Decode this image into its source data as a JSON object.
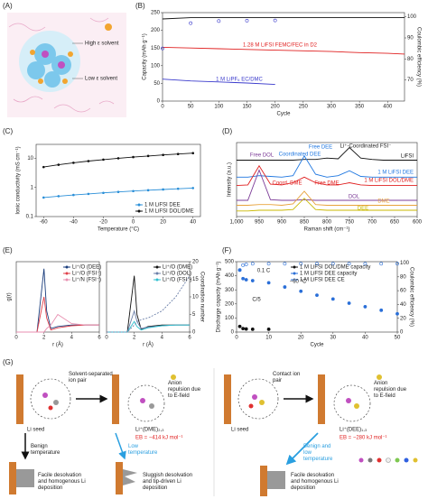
{
  "panels": [
    "(A)",
    "(B)",
    "(C)",
    "(D)",
    "(E)",
    "(F)",
    "(G)"
  ],
  "A": {
    "high": "High ε solvent",
    "low": "Low ε solvent"
  },
  "chart_data": [
    {
      "type": "line",
      "xlabel": "Cycle",
      "ylabel": "Capacity (mAh g⁻¹)",
      "y2label": "Coulombic efficiency (%)",
      "x": [
        0,
        50,
        100,
        150,
        200,
        250,
        300,
        350,
        400,
        430
      ],
      "xlim": [
        0,
        430
      ],
      "xticks": [
        0,
        50,
        100,
        150,
        200,
        250,
        300,
        350,
        400
      ],
      "ylim": [
        0,
        250
      ],
      "yticks": [
        0,
        50,
        100,
        150,
        200,
        250
      ],
      "y2lim": [
        60,
        102
      ],
      "y2ticks": [
        70,
        80,
        90,
        100
      ],
      "legend": "inline",
      "series": [
        {
          "name": "1.28 M LiFSI FEMC/FEC in D2",
          "color": "#e02020",
          "values": [
            152,
            150,
            148,
            146,
            144,
            142,
            140,
            137,
            135,
            133
          ]
        },
        {
          "name": "1 M LiPF₆ EC/DMC",
          "color": "#3a3acc",
          "values": [
            62,
            57,
            54,
            51,
            47,
            null,
            null,
            null,
            null,
            null
          ]
        },
        {
          "color": "#111111",
          "axis": "y2",
          "values": [
            99,
            99.6,
            99.6,
            99.6,
            99.6,
            99.6,
            99.6,
            99.6,
            99.6,
            99.6
          ]
        },
        {
          "color": "#3a3acc",
          "axis": "y2",
          "style": "open",
          "values": [
            85,
            97,
            98,
            98.2,
            98.3,
            null,
            null,
            null,
            null,
            null
          ]
        }
      ]
    },
    {
      "type": "line",
      "xlabel": "Temperature (°C)",
      "ylabel": "Ionic conductivity (mS cm⁻¹)",
      "x": [
        -60,
        -50,
        -40,
        -30,
        -20,
        -10,
        0,
        10,
        20,
        30,
        40
      ],
      "xlim": [
        -65,
        45
      ],
      "xticks": [
        -60,
        -40,
        -20,
        0,
        20,
        40
      ],
      "ylim": [
        0.1,
        30
      ],
      "ylog": true,
      "yticks": [
        0.1,
        1,
        10
      ],
      "legend": "lower right",
      "markers": true,
      "series": [
        {
          "name": "1 M LiFSI DEE",
          "color": "#2a8fd8",
          "values": [
            0.45,
            0.5,
            0.55,
            0.6,
            0.65,
            0.7,
            0.75,
            0.8,
            0.85,
            0.9,
            0.95
          ]
        },
        {
          "name": "1 M LiFSI DOL/DME",
          "color": "#111111",
          "values": [
            5,
            6,
            7,
            8,
            9,
            10,
            11,
            12,
            13,
            14,
            15
          ]
        }
      ]
    },
    {
      "type": "line",
      "xlabel": "Raman shift (cm⁻¹)",
      "ylabel": "Intensity (a.u.)",
      "x": [
        1000,
        975,
        950,
        925,
        900,
        875,
        850,
        825,
        800,
        775,
        750,
        725,
        700,
        675,
        650,
        625,
        600
      ],
      "xlim": [
        1000,
        600
      ],
      "xticks": [
        {
          "value": 1000,
          "label": "1,000"
        },
        950,
        900,
        850,
        800,
        750,
        700,
        650,
        600
      ],
      "ylim": [
        0,
        10.5
      ],
      "legend": "inline",
      "annotations": [
        "Free DOL",
        "Free DEE",
        "Coordinated DEE",
        "Li⁺-Coordinated FSI⁻",
        "Coord. DME",
        "Free DME"
      ],
      "series": [
        {
          "name": "LiFSI",
          "color": "#111111",
          "values": [
            8,
            8,
            8,
            8,
            8,
            8,
            8.1,
            8.1,
            8.3,
            8.2,
            9.8,
            8.3,
            8.1,
            8,
            8,
            8,
            8
          ]
        },
        {
          "name": "1 M LiFSI DEE",
          "color": "#1f77e0",
          "values": [
            5.6,
            5.6,
            5.8,
            5.7,
            5.6,
            5.8,
            8.6,
            6,
            5.6,
            5.8,
            6.5,
            5.7,
            5.6,
            5.6,
            5.6,
            5.6,
            5.6
          ]
        },
        {
          "name": "1 M LiFSI DOL/DME",
          "color": "#e02020",
          "values": [
            4.4,
            4.5,
            7.2,
            4.6,
            4.5,
            4.8,
            5.6,
            4.8,
            4.5,
            4.5,
            4.8,
            4.5,
            4.4,
            4.4,
            4.4,
            4.4,
            4.4
          ]
        },
        {
          "name": "DOL",
          "color": "#7d3c98",
          "values": [
            2.3,
            2.3,
            6.6,
            2.4,
            2.3,
            2.3,
            2.4,
            2.3,
            2.3,
            2.3,
            2.3,
            2.3,
            2.3,
            2.3,
            2.3,
            2.3,
            2.3
          ]
        },
        {
          "name": "DME",
          "color": "#e8a33c",
          "values": [
            1.6,
            1.6,
            1.7,
            1.7,
            1.6,
            1.8,
            3.6,
            1.7,
            1.6,
            1.6,
            1.6,
            1.6,
            1.6,
            1.6,
            1.6,
            1.6,
            1.6
          ]
        },
        {
          "name": "DEE",
          "color": "#c9b800",
          "values": [
            0.8,
            0.8,
            0.9,
            0.9,
            0.9,
            1,
            2.6,
            1,
            0.9,
            0.9,
            0.9,
            0.9,
            0.9,
            0.9,
            0.9,
            0.9,
            0.9
          ]
        }
      ]
    },
    {
      "type": "line",
      "xlabel": "r (Å)",
      "ylabel": "g(r)",
      "x": [
        0,
        1,
        1.5,
        2,
        2.2,
        2.5,
        3,
        4,
        5,
        6
      ],
      "xlim": [
        0,
        6
      ],
      "xticks": [
        0,
        2,
        4,
        6
      ],
      "ylim": [
        0,
        10
      ],
      "legend": "upper right",
      "series": [
        {
          "name": "Li⁺/O (DEE)",
          "color": "#1a3d7c",
          "values": [
            0,
            0,
            0,
            9,
            3,
            0.5,
            0.8,
            1,
            1,
            1
          ]
        },
        {
          "name": "Li⁺/O (FSI⁻)",
          "color": "#e0404a",
          "values": [
            0,
            0,
            0,
            5,
            2,
            0.3,
            0.6,
            0.9,
            1,
            1
          ]
        },
        {
          "name": "Li⁺/N (FSI⁻)",
          "color": "#e88fb0",
          "values": [
            0,
            0,
            0,
            0,
            0.5,
            1,
            2.5,
            1.2,
            1,
            1
          ]
        }
      ]
    },
    {
      "type": "line",
      "xlabel": "r (Å)",
      "y2label": "Coordination number",
      "x": [
        0,
        1,
        1.5,
        2,
        2.2,
        2.5,
        3,
        4,
        5,
        6
      ],
      "xlim": [
        0,
        6
      ],
      "xticks": [
        0,
        2,
        4,
        6
      ],
      "ylim": [
        0,
        10
      ],
      "y2lim": [
        0,
        20
      ],
      "y2ticks": [
        0,
        5,
        10,
        15,
        20
      ],
      "legend": "upper right",
      "series": [
        {
          "name": "Li⁺/O (DME)",
          "color": "#111111",
          "values": [
            0,
            0,
            0,
            8,
            2.5,
            0.4,
            0.8,
            1,
            1,
            1
          ]
        },
        {
          "name": "Li⁺/O (DOL)",
          "color": "#6b7fa8",
          "values": [
            0,
            0,
            0,
            3,
            1.5,
            0.5,
            0.7,
            0.9,
            1,
            1
          ]
        },
        {
          "name": "Li⁺/O (FSI⁻)",
          "color": "#2fc0d0",
          "values": [
            0,
            0,
            0,
            1.5,
            0.8,
            0.3,
            0.6,
            0.9,
            1,
            1
          ]
        },
        {
          "color": "#6b7fa8",
          "axis": "y2",
          "style": "dashed",
          "values": [
            0,
            0,
            0,
            2,
            3,
            3.5,
            4,
            6,
            10,
            16
          ]
        }
      ]
    },
    {
      "type": "scatter",
      "xlabel": "Cycle",
      "ylabel": "Discharge capacity (mAh g⁻¹)",
      "y2label": "Coulombic efficiency (%)",
      "x": [
        1,
        2,
        3,
        5,
        10,
        15,
        20,
        25,
        30,
        35,
        40,
        45,
        50
      ],
      "xlim": [
        0,
        50
      ],
      "xticks": [
        0,
        10,
        20,
        30,
        40,
        50
      ],
      "ylim": [
        0,
        500
      ],
      "yticks": [
        0,
        100,
        200,
        300,
        400,
        500
      ],
      "y2lim": [
        0,
        102
      ],
      "y2ticks": [
        0,
        20,
        40,
        60,
        80,
        100
      ],
      "legend": "upper right",
      "annotations": [
        "0.1 C",
        "−60 °C",
        "C/5"
      ],
      "series": [
        {
          "name": "1 M LiFSI DOL/DME capacity",
          "color": "#111111",
          "values": [
            40,
            25,
            22,
            20,
            20,
            null,
            null,
            null,
            null,
            null,
            null,
            null,
            null
          ]
        },
        {
          "name": "1 M LiFSI DEE capacity",
          "color": "#2a6fd8",
          "values": [
            440,
            380,
            372,
            365,
            350,
            320,
            290,
            262,
            235,
            205,
            180,
            155,
            130
          ]
        },
        {
          "name": "1 M LiFSI DEE CE",
          "color": "#2a6fd8",
          "axis": "y2",
          "style": "open",
          "values": [
            90,
            97,
            98,
            99,
            99,
            99,
            99,
            99,
            99,
            99,
            99,
            99,
            99
          ]
        }
      ]
    }
  ],
  "G": {
    "left": {
      "pair": "Solvent-separated ion pair",
      "repulsion": "Anion repulsion due to E-field",
      "seed": "Li seed",
      "complex": "Li⁺(DME)₂,₃",
      "energy": "EB = −414 kJ mol⁻¹",
      "benign": "Benign temperature",
      "low": "Low temperature",
      "good": "Facile desolvation and homogenous Li deposition",
      "bad": "Sluggish desolvation and tip-driven Li deposition"
    },
    "right": {
      "pair": "Contact ion pair",
      "repulsion": "Anion repulsion due to E-field",
      "seed": "Li seed",
      "complex": "Li⁺(DEE)₁,₃",
      "energy": "EB = −280 kJ mol⁻¹",
      "both": "Benign and low temperature",
      "good": "Facile desolvation and homogenous Li deposition"
    },
    "elements": [
      "Li",
      "C",
      "O",
      "H",
      "F",
      "N",
      "S"
    ]
  }
}
